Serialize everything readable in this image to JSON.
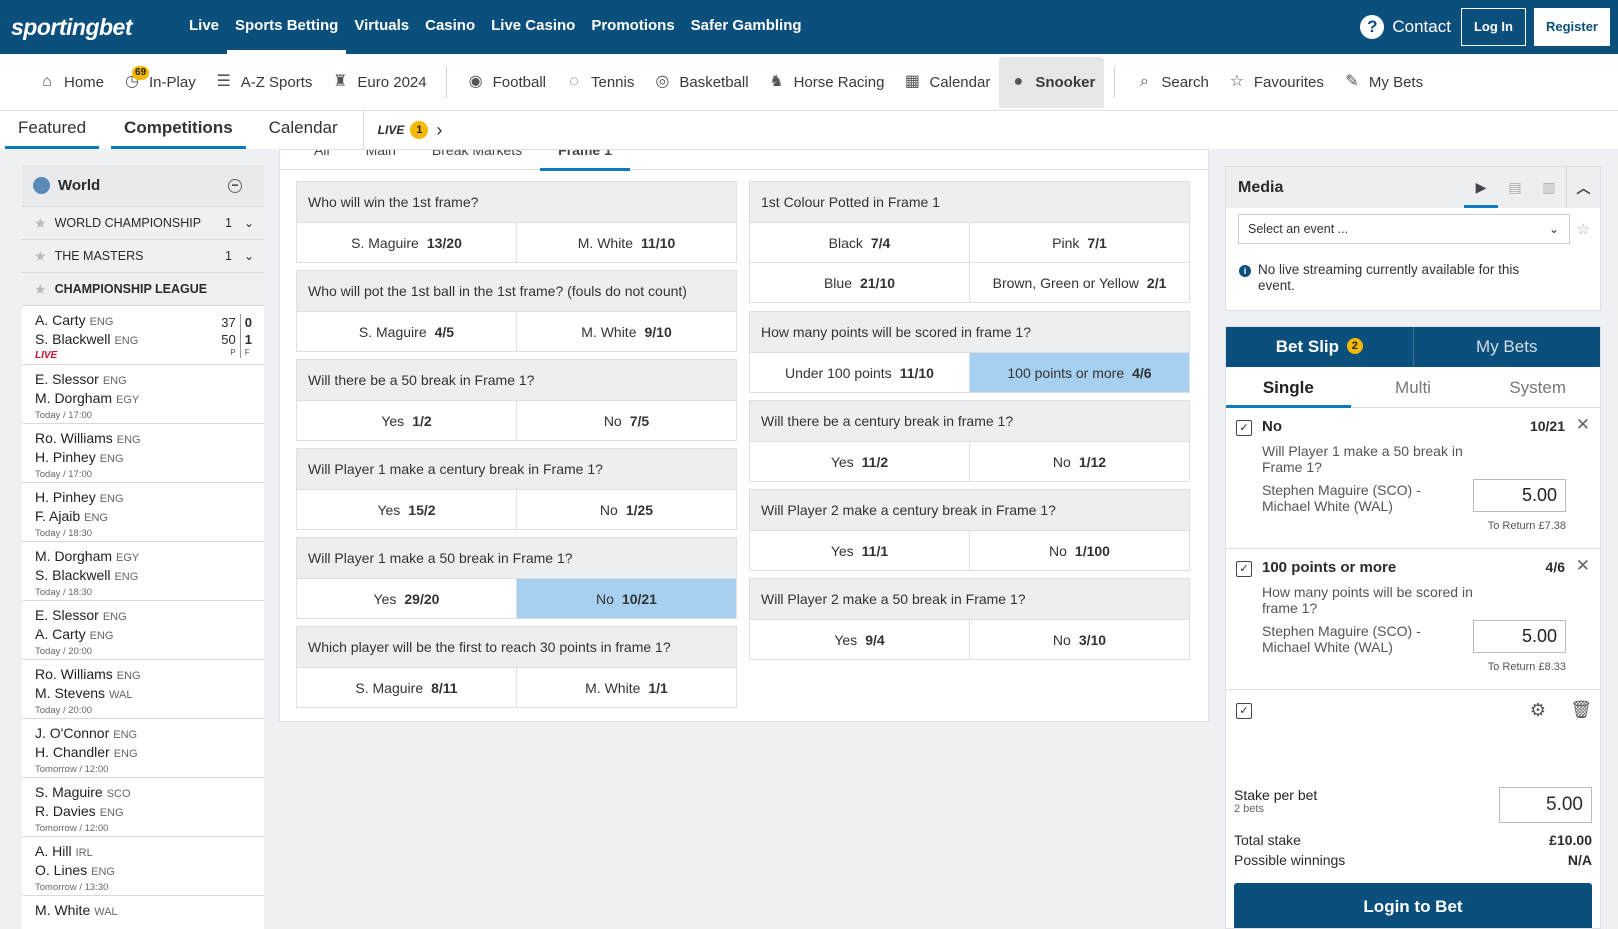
{
  "brand": {
    "logo": "sportingbet",
    "primary_color": "#0b4f7c",
    "accent_color": "#0b7bc0",
    "badge_color": "#f5b800",
    "selected_odds_color": "#a7cff0"
  },
  "topnav": {
    "items": [
      "Live",
      "Sports Betting",
      "Virtuals",
      "Casino",
      "Live Casino",
      "Promotions",
      "Safer Gambling"
    ],
    "active": "Sports Betting",
    "contact": "Contact",
    "login": "Log In",
    "register": "Register"
  },
  "sportsnav": {
    "items": [
      {
        "label": "Home",
        "icon": "home-icon"
      },
      {
        "label": "In-Play",
        "icon": "stopwatch-icon",
        "badge": "69"
      },
      {
        "label": "A-Z Sports",
        "icon": "people-icon"
      },
      {
        "label": "Euro 2024",
        "icon": "trophy-icon"
      },
      {
        "label": "Football",
        "icon": "football-icon"
      },
      {
        "label": "Tennis",
        "icon": "tennis-icon"
      },
      {
        "label": "Basketball",
        "icon": "basketball-icon"
      },
      {
        "label": "Horse Racing",
        "icon": "horse-icon"
      },
      {
        "label": "Calendar",
        "icon": "calendar-icon"
      },
      {
        "label": "Snooker",
        "icon": "snooker-icon",
        "active": true
      },
      {
        "label": "Search",
        "icon": "search-icon"
      },
      {
        "label": "Favourites",
        "icon": "star-icon"
      },
      {
        "label": "My Bets",
        "icon": "bets-icon"
      }
    ]
  },
  "tabs": {
    "featured": "Featured",
    "competitions": "Competitions",
    "calendar": "Calendar",
    "live": "LIVE",
    "live_count": "1"
  },
  "sidebar": {
    "region": "World",
    "competitions": [
      {
        "name": "WORLD CHAMPIONSHIP",
        "count": "1"
      },
      {
        "name": "THE MASTERS",
        "count": "1"
      },
      {
        "name": "CHAMPIONSHIP LEAGUE",
        "count": ""
      }
    ],
    "live_match": {
      "p1": "A. Carty",
      "n1": "ENG",
      "p2": "S. Blackwell",
      "n2": "ENG",
      "p1_points": "37",
      "p1_frames": "0",
      "p2_points": "50",
      "p2_frames": "1",
      "points_label": "P",
      "frames_label": "F",
      "status": "LIVE"
    },
    "matches": [
      {
        "p1": "E. Slessor",
        "n1": "ENG",
        "p2": "M. Dorgham",
        "n2": "EGY",
        "time": "Today / 17:00"
      },
      {
        "p1": "Ro. Williams",
        "n1": "ENG",
        "p2": "H. Pinhey",
        "n2": "ENG",
        "time": "Today / 17:00"
      },
      {
        "p1": "H. Pinhey",
        "n1": "ENG",
        "p2": "F. Ajaib",
        "n2": "ENG",
        "time": "Today / 18:30"
      },
      {
        "p1": "M. Dorgham",
        "n1": "EGY",
        "p2": "S. Blackwell",
        "n2": "ENG",
        "time": "Today / 18:30"
      },
      {
        "p1": "E. Slessor",
        "n1": "ENG",
        "p2": "A. Carty",
        "n2": "ENG",
        "time": "Today / 20:00"
      },
      {
        "p1": "Ro. Williams",
        "n1": "ENG",
        "p2": "M. Stevens",
        "n2": "WAL",
        "time": "Today / 20:00"
      },
      {
        "p1": "J. O'Connor",
        "n1": "ENG",
        "p2": "H. Chandler",
        "n2": "ENG",
        "time": "Tomorrow / 12:00"
      },
      {
        "p1": "S. Maguire",
        "n1": "SCO",
        "p2": "R. Davies",
        "n2": "ENG",
        "time": "Tomorrow / 12:00"
      },
      {
        "p1": "A. Hill",
        "n1": "IRL",
        "p2": "O. Lines",
        "n2": "ENG",
        "time": "Tomorrow / 13:30"
      },
      {
        "p1": "M. White",
        "n1": "WAL",
        "p2": "",
        "n2": "",
        "time": ""
      }
    ]
  },
  "market_tabs": [
    "All",
    "Main",
    "Break Markets",
    "Frame 1"
  ],
  "markets_left": [
    {
      "q": "Who will win the 1st frame?",
      "rows": [
        [
          {
            "l": "S. Maguire",
            "o": "13/20"
          },
          {
            "l": "M. White",
            "o": "11/10"
          }
        ]
      ]
    },
    {
      "q": "Who will pot the 1st ball in the 1st frame? (fouls do not count)",
      "rows": [
        [
          {
            "l": "S. Maguire",
            "o": "4/5"
          },
          {
            "l": "M. White",
            "o": "9/10"
          }
        ]
      ]
    },
    {
      "q": "Will there be a 50 break in Frame 1?",
      "rows": [
        [
          {
            "l": "Yes",
            "o": "1/2"
          },
          {
            "l": "No",
            "o": "7/5"
          }
        ]
      ]
    },
    {
      "q": "Will Player 1 make a century break in Frame 1?",
      "rows": [
        [
          {
            "l": "Yes",
            "o": "15/2"
          },
          {
            "l": "No",
            "o": "1/25"
          }
        ]
      ]
    },
    {
      "q": "Will Player 1 make a 50 break in Frame 1?",
      "rows": [
        [
          {
            "l": "Yes",
            "o": "29/20"
          },
          {
            "l": "No",
            "o": "10/21",
            "sel": true
          }
        ]
      ]
    },
    {
      "q": "Which player will be the first to reach 30 points in frame 1?",
      "rows": [
        [
          {
            "l": "S. Maguire",
            "o": "8/11"
          },
          {
            "l": "M. White",
            "o": "1/1"
          }
        ]
      ]
    }
  ],
  "markets_right": [
    {
      "q": "1st Colour Potted in Frame 1",
      "rows": [
        [
          {
            "l": "Black",
            "o": "7/4"
          },
          {
            "l": "Pink",
            "o": "7/1"
          }
        ],
        [
          {
            "l": "Blue",
            "o": "21/10"
          },
          {
            "l": "Brown, Green or Yellow",
            "o": "2/1"
          }
        ]
      ]
    },
    {
      "q": "How many points will be scored in frame 1?",
      "rows": [
        [
          {
            "l": "Under 100 points",
            "o": "11/10"
          },
          {
            "l": "100 points or more",
            "o": "4/6",
            "sel": true
          }
        ]
      ]
    },
    {
      "q": "Will there be a century break in frame 1?",
      "rows": [
        [
          {
            "l": "Yes",
            "o": "11/2"
          },
          {
            "l": "No",
            "o": "1/12"
          }
        ]
      ]
    },
    {
      "q": "Will Player 2 make a century break in Frame 1?",
      "rows": [
        [
          {
            "l": "Yes",
            "o": "11/1"
          },
          {
            "l": "No",
            "o": "1/100"
          }
        ]
      ]
    },
    {
      "q": "Will Player 2 make a 50 break in Frame 1?",
      "rows": [
        [
          {
            "l": "Yes",
            "o": "9/4"
          },
          {
            "l": "No",
            "o": "3/10"
          }
        ]
      ]
    }
  ],
  "media": {
    "title": "Media",
    "select_placeholder": "Select an event ...",
    "info": "No live streaming currently available for this event."
  },
  "betslip": {
    "title": "Bet Slip",
    "count": "2",
    "my_bets": "My Bets",
    "types": [
      "Single",
      "Multi",
      "System"
    ],
    "selections": [
      {
        "name": "No",
        "odds": "10/21",
        "market": "Will Player 1 make a 50 break in Frame 1?",
        "event": "Stephen Maguire (SCO) - Michael White (WAL)",
        "stake": "5.00",
        "to_return": "To Return £7.38"
      },
      {
        "name": "100 points or more",
        "odds": "4/6",
        "market": "How many points will be scored in frame 1?",
        "event": "Stephen Maguire (SCO) - Michael White (WAL)",
        "stake": "5.00",
        "to_return": "To Return £8.33"
      }
    ],
    "stake_per_bet_label": "Stake per bet",
    "bets_count": "2 bets",
    "stake_per_bet": "5.00",
    "total_stake_label": "Total stake",
    "total_stake": "£10.00",
    "possible_winnings_label": "Possible winnings",
    "possible_winnings": "N/A",
    "login_to_bet": "Login to Bet"
  }
}
